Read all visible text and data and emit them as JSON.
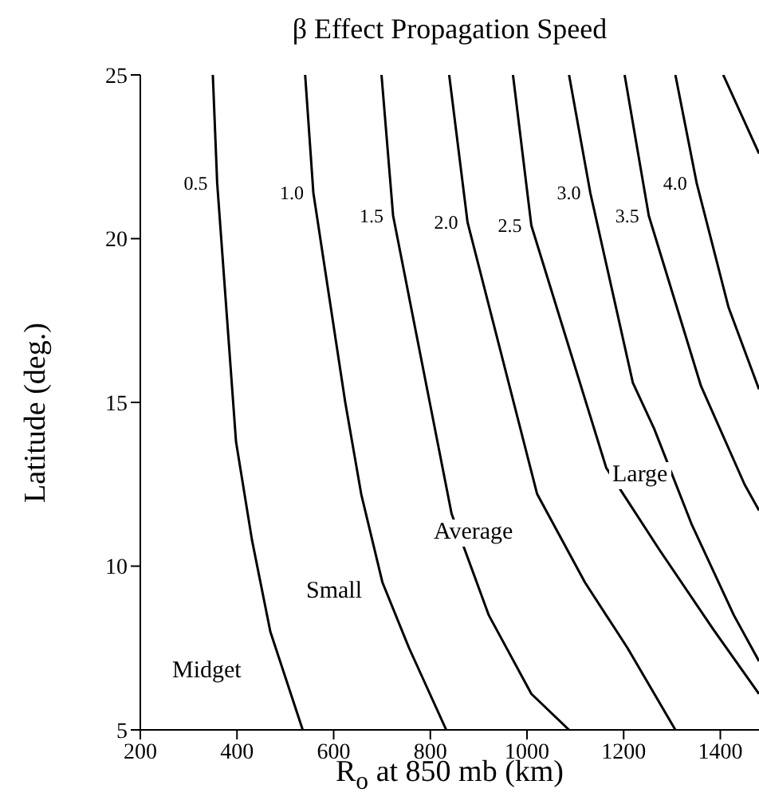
{
  "chart_data": {
    "type": "line",
    "title": "β Effect Propagation Speed",
    "xlabel": "R$_{o}$ at 850 mb (km)",
    "ylabel": "Latitude (deg.)",
    "xlim": [
      200,
      1480
    ],
    "xticks": [
      200,
      400,
      600,
      800,
      1000,
      1200,
      1400
    ],
    "ylim": [
      5,
      25
    ],
    "yticks": [
      5,
      10,
      15,
      20,
      25
    ],
    "grid": false,
    "legend": false,
    "marker": "none",
    "line_style": "solid",
    "annotations": [
      "Midget",
      "Small",
      "Average",
      "Large"
    ],
    "series": [
      {
        "name": "0.5",
        "color": "#000000",
        "x": [
          350,
          359,
          398,
          431,
          469,
          536
        ],
        "values": [
          25,
          21.7,
          13.8,
          10.8,
          8,
          5
        ]
      },
      {
        "name": "1.0",
        "color": "#000000",
        "x": [
          541,
          558,
          624,
          657,
          701,
          756,
          833
        ],
        "values": [
          25,
          21.4,
          15,
          12.2,
          9.5,
          7.5,
          5
        ]
      },
      {
        "name": "1.5",
        "color": "#000000",
        "x": [
          699,
          723,
          844,
          921,
          1009,
          1087
        ],
        "values": [
          25,
          20.7,
          11.6,
          8.5,
          6.1,
          5
        ]
      },
      {
        "name": "2.0",
        "color": "#000000",
        "x": [
          839,
          877,
          1021,
          1120,
          1208,
          1307
        ],
        "values": [
          25,
          20.5,
          12.2,
          9.5,
          7.5,
          5
        ]
      },
      {
        "name": "2.5",
        "color": "#000000",
        "x": [
          971,
          1009,
          1164,
          1274,
          1384,
          1480
        ],
        "values": [
          25,
          20.4,
          13,
          10.5,
          8.1,
          6.1
        ]
      },
      {
        "name": "3.0",
        "color": "#000000",
        "x": [
          1087,
          1131,
          1219,
          1263,
          1340,
          1428,
          1480
        ],
        "values": [
          25,
          21.4,
          15.6,
          14.2,
          11.3,
          8.5,
          7.1
        ]
      },
      {
        "name": "3.5",
        "color": "#000000",
        "x": [
          1202,
          1252,
          1360,
          1450,
          1480
        ],
        "values": [
          25,
          20.7,
          15.5,
          12.5,
          11.7
        ]
      },
      {
        "name": "4.0",
        "color": "#000000",
        "x": [
          1307,
          1351,
          1417,
          1480
        ],
        "values": [
          25,
          21.7,
          17.9,
          15.4
        ]
      },
      {
        "color": "#000000",
        "x": [
          1406,
          1480
        ],
        "values": [
          25,
          22.6
        ]
      }
    ]
  }
}
